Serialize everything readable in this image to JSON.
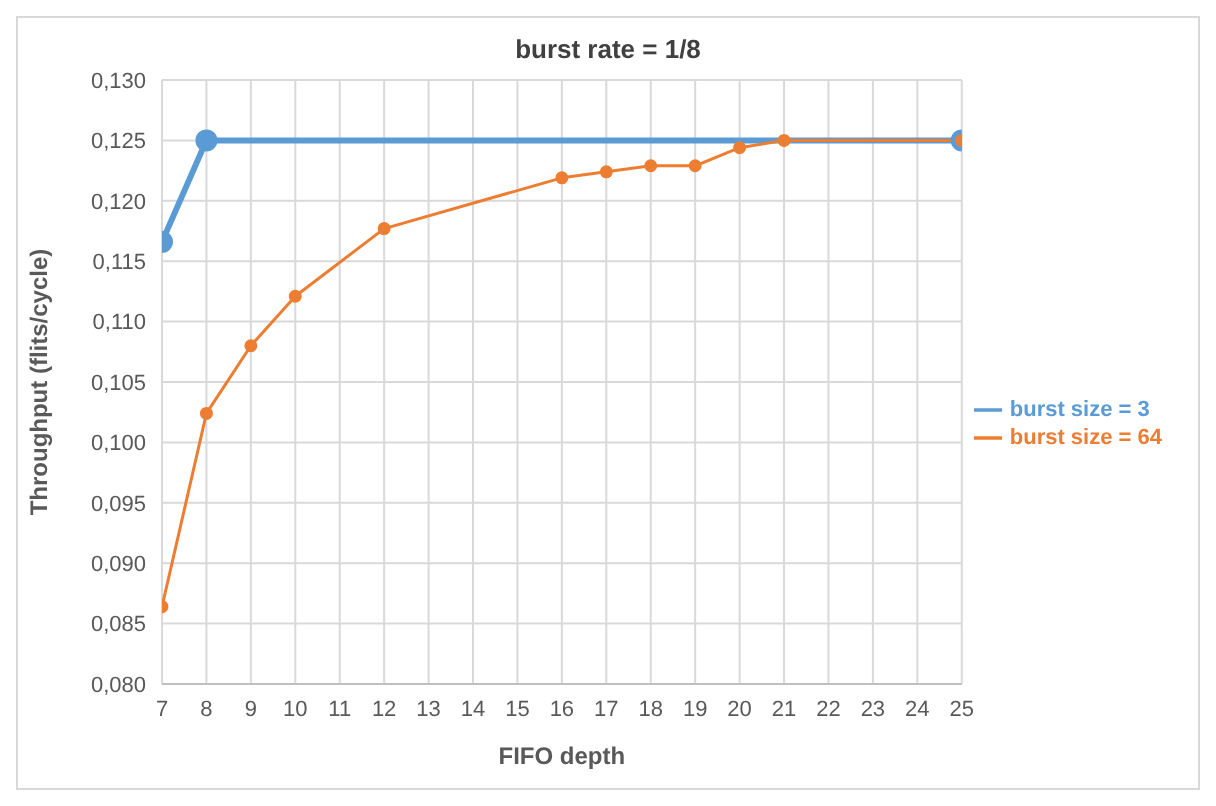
{
  "chart_data": {
    "type": "line",
    "title": "burst rate = 1/8",
    "xlabel": "FIFO depth",
    "ylabel": "Throughput (flits/cycle)",
    "xlim": [
      7,
      25
    ],
    "xticks": [
      7,
      8,
      9,
      10,
      11,
      12,
      13,
      14,
      15,
      16,
      17,
      18,
      19,
      20,
      21,
      22,
      23,
      24,
      25
    ],
    "ylim": [
      0.08,
      0.13
    ],
    "yticks": [
      {
        "value": 0.08,
        "label": "0,080"
      },
      {
        "value": 0.085,
        "label": "0,085"
      },
      {
        "value": 0.09,
        "label": "0,090"
      },
      {
        "value": 0.095,
        "label": "0,095"
      },
      {
        "value": 0.1,
        "label": "0,100"
      },
      {
        "value": 0.105,
        "label": "0,105"
      },
      {
        "value": 0.11,
        "label": "0,110"
      },
      {
        "value": 0.115,
        "label": "0,115"
      },
      {
        "value": 0.12,
        "label": "0,120"
      },
      {
        "value": 0.125,
        "label": "0,125"
      },
      {
        "value": 0.13,
        "label": "0,130"
      }
    ],
    "grid": true,
    "legend": "right",
    "marker": "circle",
    "line_style": "solid",
    "series": [
      {
        "name": "burst size = 3",
        "color": "#5b9bd5",
        "x": [
          7,
          8,
          25
        ],
        "values": [
          0.1166,
          0.125,
          0.125
        ]
      },
      {
        "name": "burst size = 64",
        "color": "#ed7d31",
        "x": [
          7,
          8,
          9,
          10,
          12,
          16,
          17,
          18,
          19,
          20,
          21,
          25
        ],
        "values": [
          0.0864,
          0.1024,
          0.108,
          0.1121,
          0.1177,
          0.1219,
          0.1224,
          0.1229,
          0.1229,
          0.1244,
          0.125,
          0.125
        ]
      }
    ]
  }
}
